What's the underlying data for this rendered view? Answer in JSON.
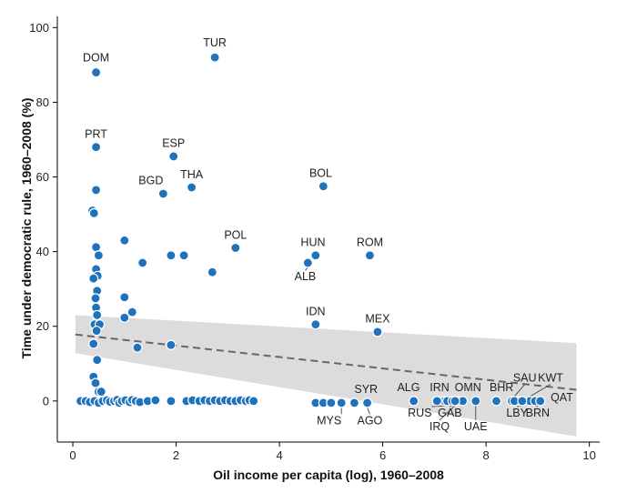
{
  "chart_data": {
    "type": "scatter",
    "xlabel": "Oil income per capita (log), 1960–2008",
    "ylabel": "Time under democratic rule, 1960–2008 (%)",
    "xlim": [
      -0.3,
      10.2
    ],
    "ylim": [
      -11,
      103
    ],
    "xticks": [
      0,
      2,
      4,
      6,
      8,
      10
    ],
    "yticks": [
      0,
      20,
      40,
      60,
      80,
      100
    ],
    "grid": false,
    "colors": {
      "point": "#1f72bc",
      "point_stroke": "#ffffff",
      "band": "#dcdcdc",
      "trend": "#666666",
      "axis": "#000000"
    },
    "trend_line": {
      "x": [
        0.05,
        9.75
      ],
      "y": [
        17.8,
        3.0
      ]
    },
    "confidence_band": {
      "x": [
        0.05,
        9.75
      ],
      "upper": [
        23.0,
        15.5
      ],
      "lower": [
        12.8,
        -9.5
      ]
    },
    "labeled_points": [
      {
        "label": "DOM",
        "x": 0.45,
        "y": 88,
        "lx": 0.45,
        "ly": 91,
        "anchor": "middle"
      },
      {
        "label": "TUR",
        "x": 2.75,
        "y": 92,
        "lx": 2.75,
        "ly": 95,
        "anchor": "middle"
      },
      {
        "label": "PRT",
        "x": 0.45,
        "y": 68,
        "lx": 0.45,
        "ly": 70.5,
        "anchor": "middle"
      },
      {
        "label": "ESP",
        "x": 1.95,
        "y": 65.5,
        "lx": 1.95,
        "ly": 68,
        "anchor": "middle"
      },
      {
        "label": "BOL",
        "x": 4.85,
        "y": 57.5,
        "lx": 4.8,
        "ly": 60,
        "anchor": "middle"
      },
      {
        "label": "BGD",
        "x": 1.75,
        "y": 55.5,
        "lx": 1.75,
        "ly": 58,
        "anchor": "end"
      },
      {
        "label": "THA",
        "x": 2.3,
        "y": 57.2,
        "lx": 2.3,
        "ly": 59.7,
        "anchor": "middle"
      },
      {
        "label": "POL",
        "x": 3.15,
        "y": 41,
        "lx": 3.15,
        "ly": 43.5,
        "anchor": "middle"
      },
      {
        "label": "HUN",
        "x": 4.7,
        "y": 39,
        "lx": 4.65,
        "ly": 41.5,
        "anchor": "middle"
      },
      {
        "label": "ROM",
        "x": 5.75,
        "y": 39,
        "lx": 5.75,
        "ly": 41.5,
        "anchor": "middle"
      },
      {
        "label": "ALB",
        "x": 4.55,
        "y": 37,
        "lx": 4.5,
        "ly": 32.3,
        "anchor": "middle"
      },
      {
        "label": "IDN",
        "x": 4.7,
        "y": 20.5,
        "lx": 4.7,
        "ly": 23,
        "anchor": "middle"
      },
      {
        "label": "MEX",
        "x": 5.9,
        "y": 18.5,
        "lx": 5.9,
        "ly": 21,
        "anchor": "middle"
      },
      {
        "label": "SYR",
        "x": 5.45,
        "y": -0.5,
        "lx": 5.45,
        "ly": 2.2,
        "anchor": "start"
      },
      {
        "label": "MYS",
        "x": 5.2,
        "y": -0.5,
        "lx": 5.2,
        "ly": -6.2,
        "anchor": "end"
      },
      {
        "label": "AGO",
        "x": 5.7,
        "y": -0.5,
        "lx": 5.75,
        "ly": -6.2,
        "anchor": "middle"
      },
      {
        "label": "ALG",
        "x": 6.6,
        "y": 0,
        "lx": 6.5,
        "ly": 2.7,
        "anchor": "middle"
      },
      {
        "label": "IRN",
        "x": 7.05,
        "y": 0,
        "lx": 7.1,
        "ly": 2.7,
        "anchor": "middle"
      },
      {
        "label": "OMN",
        "x": 7.55,
        "y": 0,
        "lx": 7.65,
        "ly": 2.7,
        "anchor": "middle"
      },
      {
        "label": "BHR",
        "x": 8.2,
        "y": 0,
        "lx": 8.3,
        "ly": 2.7,
        "anchor": "middle"
      },
      {
        "label": "SAU",
        "x": 8.55,
        "y": 0,
        "lx": 8.75,
        "ly": 5.2,
        "anchor": "middle"
      },
      {
        "label": "KWT",
        "x": 8.85,
        "y": 0,
        "lx": 9.25,
        "ly": 5.2,
        "anchor": "middle"
      },
      {
        "label": "RUS",
        "x": 7.25,
        "y": 0,
        "lx": 6.95,
        "ly": -4.2,
        "anchor": "end"
      },
      {
        "label": "GAB",
        "x": 7.35,
        "y": 0,
        "lx": 7.3,
        "ly": -4.2,
        "anchor": "middle"
      },
      {
        "label": "IRQ",
        "x": 7.4,
        "y": 0,
        "lx": 7.1,
        "ly": -7.8,
        "anchor": "middle"
      },
      {
        "label": "UAE",
        "x": 7.8,
        "y": 0,
        "lx": 7.8,
        "ly": -7.8,
        "anchor": "middle"
      },
      {
        "label": "LBY",
        "x": 8.7,
        "y": 0,
        "lx": 8.6,
        "ly": -4.2,
        "anchor": "middle"
      },
      {
        "label": "BRN",
        "x": 8.95,
        "y": 0,
        "lx": 9.0,
        "ly": -4.2,
        "anchor": "middle"
      },
      {
        "label": "QAT",
        "x": 9.05,
        "y": 0,
        "lx": 9.25,
        "ly": 0,
        "anchor": "start"
      }
    ],
    "points": [
      {
        "x": 0.45,
        "y": 56.5
      },
      {
        "x": 0.38,
        "y": 51
      },
      {
        "x": 0.41,
        "y": 50.3
      },
      {
        "x": 0.45,
        "y": 41.2
      },
      {
        "x": 1.0,
        "y": 43
      },
      {
        "x": 1.35,
        "y": 37
      },
      {
        "x": 1.9,
        "y": 39
      },
      {
        "x": 2.15,
        "y": 39
      },
      {
        "x": 2.7,
        "y": 34.5
      },
      {
        "x": 0.5,
        "y": 39
      },
      {
        "x": 0.45,
        "y": 35.3
      },
      {
        "x": 0.48,
        "y": 33.5
      },
      {
        "x": 0.4,
        "y": 32.8
      },
      {
        "x": 0.47,
        "y": 29.5
      },
      {
        "x": 0.44,
        "y": 27.5
      },
      {
        "x": 1.0,
        "y": 27.8
      },
      {
        "x": 0.45,
        "y": 25
      },
      {
        "x": 1.15,
        "y": 23.8
      },
      {
        "x": 0.47,
        "y": 23
      },
      {
        "x": 1.0,
        "y": 22.3
      },
      {
        "x": 0.42,
        "y": 20.5
      },
      {
        "x": 0.52,
        "y": 20.5
      },
      {
        "x": 0.46,
        "y": 18.8
      },
      {
        "x": 1.25,
        "y": 14.3
      },
      {
        "x": 1.9,
        "y": 15
      },
      {
        "x": 0.4,
        "y": 15.3
      },
      {
        "x": 0.47,
        "y": 11
      },
      {
        "x": 0.4,
        "y": 6.5
      },
      {
        "x": 0.44,
        "y": 4.8
      },
      {
        "x": 0.5,
        "y": 2.5
      },
      {
        "x": 0.55,
        "y": 2.5
      },
      {
        "x": 0.15,
        "y": 0
      },
      {
        "x": 0.25,
        "y": 0
      },
      {
        "x": 0.33,
        "y": -0.3
      },
      {
        "x": 0.42,
        "y": 0
      },
      {
        "x": 0.5,
        "y": -0.5
      },
      {
        "x": 0.58,
        "y": 0
      },
      {
        "x": 0.66,
        "y": 0.2
      },
      {
        "x": 0.72,
        "y": -0.2
      },
      {
        "x": 0.8,
        "y": 0
      },
      {
        "x": 0.86,
        "y": 0.3
      },
      {
        "x": 0.9,
        "y": -0.5
      },
      {
        "x": 0.95,
        "y": 0
      },
      {
        "x": 1.02,
        "y": 0.2
      },
      {
        "x": 1.1,
        "y": -0.3
      },
      {
        "x": 1.15,
        "y": 0.3
      },
      {
        "x": 1.22,
        "y": 0
      },
      {
        "x": 1.3,
        "y": -0.3
      },
      {
        "x": 1.45,
        "y": 0
      },
      {
        "x": 1.6,
        "y": 0.2
      },
      {
        "x": 1.9,
        "y": 0
      },
      {
        "x": 2.2,
        "y": 0
      },
      {
        "x": 2.32,
        "y": 0.2
      },
      {
        "x": 2.45,
        "y": 0
      },
      {
        "x": 2.55,
        "y": 0.2
      },
      {
        "x": 2.65,
        "y": 0
      },
      {
        "x": 2.75,
        "y": 0.2
      },
      {
        "x": 2.85,
        "y": 0
      },
      {
        "x": 2.95,
        "y": 0.2
      },
      {
        "x": 3.05,
        "y": 0
      },
      {
        "x": 3.15,
        "y": 0
      },
      {
        "x": 3.25,
        "y": 0.2
      },
      {
        "x": 3.35,
        "y": 0
      },
      {
        "x": 3.42,
        "y": 0.2
      },
      {
        "x": 3.5,
        "y": 0
      },
      {
        "x": 4.7,
        "y": -0.5
      },
      {
        "x": 4.85,
        "y": -0.5
      },
      {
        "x": 5.0,
        "y": -0.5
      },
      {
        "x": 7.2,
        "y": 0
      },
      {
        "x": 7.45,
        "y": 0
      },
      {
        "x": 8.5,
        "y": 0
      },
      {
        "x": 8.65,
        "y": 0
      }
    ]
  }
}
